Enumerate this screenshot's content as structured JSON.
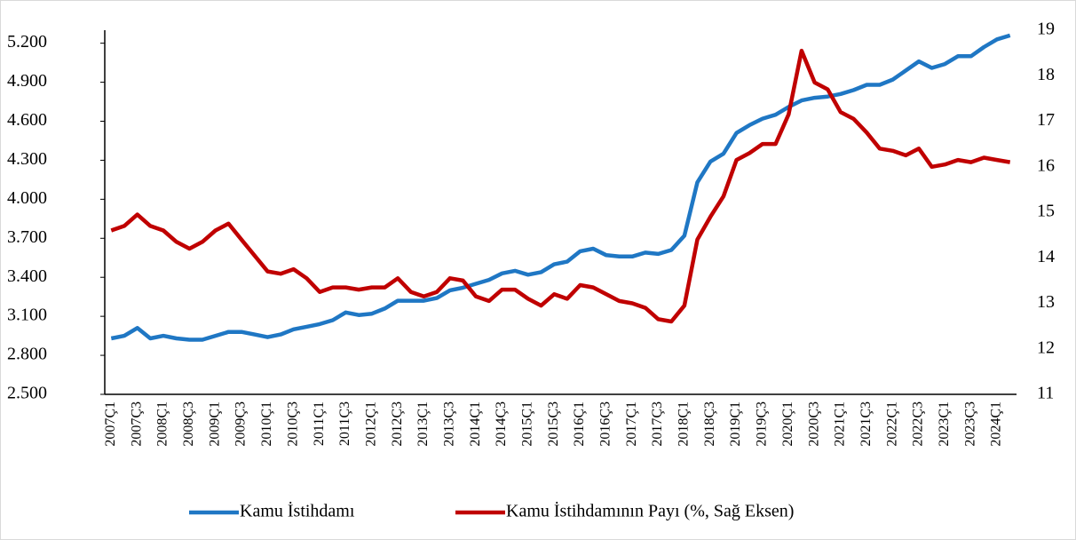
{
  "chart_data": {
    "type": "line",
    "categories": [
      "2007Ç1",
      null,
      "2007Ç3",
      null,
      "2008Ç1",
      null,
      "2008Ç3",
      null,
      "2009Ç1",
      null,
      "2009Ç3",
      null,
      "2010Ç1",
      null,
      "2010Ç3",
      null,
      "2011Ç1",
      null,
      "2011Ç3",
      null,
      "2012Ç1",
      null,
      "2012Ç3",
      null,
      "2013Ç1",
      null,
      "2013Ç3",
      null,
      "2014Ç1",
      null,
      "2014Ç3",
      null,
      "2015Ç1",
      null,
      "2015Ç3",
      null,
      "2016Ç1",
      null,
      "2016Ç3",
      null,
      "2017Ç1",
      null,
      "2017Ç3",
      null,
      "2018Ç1",
      null,
      "2018Ç3",
      null,
      "2019Ç1",
      null,
      "2019Ç3",
      null,
      "2020Ç1",
      null,
      "2020Ç3",
      null,
      "2021Ç1",
      null,
      "2021Ç3",
      null,
      "2022Ç1",
      null,
      "2022Ç3",
      null,
      "2023Ç1",
      null,
      "2023Ç3",
      null,
      "2024Ç1",
      null
    ],
    "series": [
      {
        "name": "Kamu İstihdamı",
        "color": "#1f77c4",
        "values": [
          2930,
          2950,
          3010,
          2930,
          2950,
          2930,
          2920,
          2920,
          2950,
          2980,
          2980,
          2960,
          2940,
          2960,
          3000,
          3020,
          3040,
          3070,
          3130,
          3110,
          3120,
          3160,
          3220,
          3220,
          3220,
          3240,
          3300,
          3320,
          3350,
          3380,
          3430,
          3450,
          3420,
          3440,
          3500,
          3520,
          3600,
          3620,
          3570,
          3560,
          3560,
          3590,
          3580,
          3610,
          3720,
          4130,
          4290,
          4350,
          4510,
          4570,
          4620,
          4650,
          4710,
          4760,
          4780,
          4790,
          4810,
          4840,
          4880,
          4880,
          4920,
          4990,
          5060,
          5010,
          5040,
          5100,
          5100,
          5170,
          5230,
          5260
        ]
      },
      {
        "name": "Kamu İstihdamının Payı (%, Sağ Eksen)",
        "color": "#c00000",
        "axis": "y2",
        "values": [
          14.6,
          14.7,
          14.95,
          14.7,
          14.6,
          14.35,
          14.2,
          14.35,
          14.6,
          14.75,
          14.4,
          14.05,
          13.7,
          13.65,
          13.75,
          13.55,
          13.25,
          13.35,
          13.35,
          13.3,
          13.35,
          13.35,
          13.55,
          13.25,
          13.15,
          13.25,
          13.55,
          13.5,
          13.15,
          13.05,
          13.3,
          13.3,
          13.1,
          12.95,
          13.2,
          13.1,
          13.4,
          13.35,
          13.2,
          13.05,
          13.0,
          12.9,
          12.65,
          12.6,
          12.95,
          14.4,
          14.9,
          15.35,
          16.15,
          16.3,
          16.5,
          16.5,
          17.15,
          18.55,
          17.85,
          17.7,
          17.2,
          17.05,
          16.75,
          16.4,
          16.35,
          16.25,
          16.4,
          16.0,
          16.05,
          16.15,
          16.1,
          16.2,
          16.15,
          16.1
        ]
      }
    ],
    "ylim": [
      2500,
      5300
    ],
    "yticks": [
      {
        "value": 2500,
        "label": "2.500"
      },
      {
        "value": 2800,
        "label": "2.800"
      },
      {
        "value": 3100,
        "label": "3.100"
      },
      {
        "value": 3400,
        "label": "3.400"
      },
      {
        "value": 3700,
        "label": "3.700"
      },
      {
        "value": 4000,
        "label": "4.000"
      },
      {
        "value": 4300,
        "label": "4.300"
      },
      {
        "value": 4600,
        "label": "4.600"
      },
      {
        "value": 4900,
        "label": "4.900"
      },
      {
        "value": 5200,
        "label": "5.200"
      }
    ],
    "y2lim": [
      11,
      19
    ],
    "y2ticks": [
      11,
      12,
      13,
      14,
      15,
      16,
      17,
      18,
      19
    ],
    "legend": "bottom"
  }
}
